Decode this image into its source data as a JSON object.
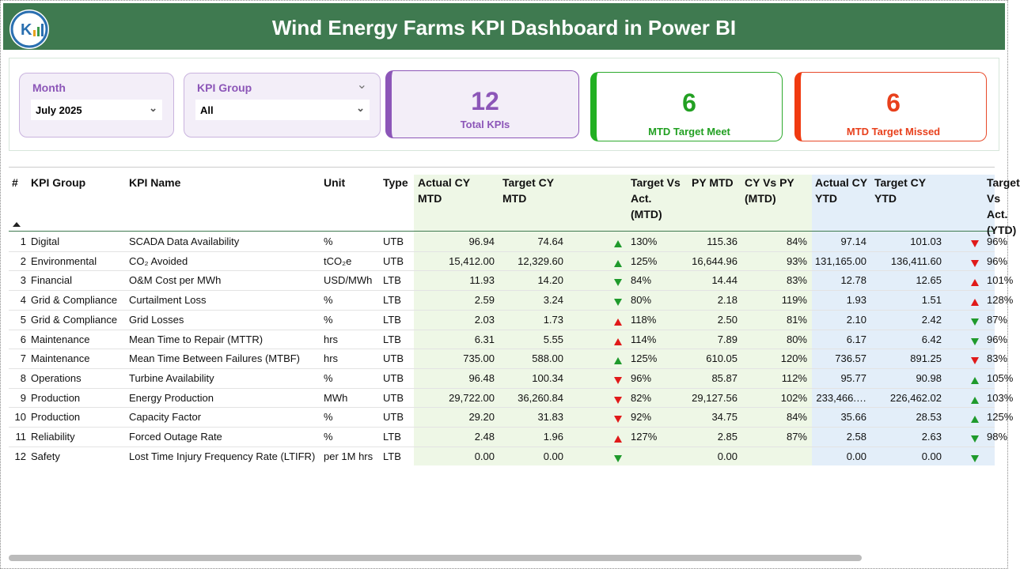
{
  "header": {
    "title": "Wind Energy Farms KPI Dashboard  in Power BI"
  },
  "slicers": [
    {
      "label": "Month",
      "selected": "July 2025"
    },
    {
      "label": "KPI Group",
      "selected": "All"
    }
  ],
  "cards": [
    {
      "value": "12",
      "label": "Total KPIs"
    },
    {
      "value": "6",
      "label": "MTD Target Meet"
    },
    {
      "value": "6",
      "label": "MTD Target Missed"
    }
  ],
  "table": {
    "columns": [
      "#",
      "KPI Group",
      "KPI Name",
      "Unit",
      "Type",
      "Actual CY MTD",
      "Target CY MTD",
      "Target Vs Act. (MTD)",
      "PY MTD",
      "CY Vs PY (MTD)",
      "Actual CY YTD",
      "Target CY YTD",
      "Target Vs Act. (YTD)"
    ],
    "rows": [
      [
        "1",
        "Digital",
        "SCADA Data Availability",
        "%",
        "UTB",
        "96.94",
        "74.64",
        "130%",
        "115.36",
        "84%",
        "97.14",
        "101.03",
        "96%"
      ],
      [
        "2",
        "Environmental",
        "CO₂ Avoided",
        "tCO₂e",
        "UTB",
        "15,412.00",
        "12,329.60",
        "125%",
        "16,644.96",
        "93%",
        "131,165.00",
        "136,411.60",
        "96%"
      ],
      [
        "3",
        "Financial",
        "O&M Cost per MWh",
        "USD/MWh",
        "LTB",
        "11.93",
        "14.20",
        "84%",
        "14.44",
        "83%",
        "12.78",
        "12.65",
        "101%"
      ],
      [
        "4",
        "Grid & Compliance",
        "Curtailment Loss",
        "%",
        "LTB",
        "2.59",
        "3.24",
        "80%",
        "2.18",
        "119%",
        "1.93",
        "1.51",
        "128%"
      ],
      [
        "5",
        "Grid & Compliance",
        "Grid Losses",
        "%",
        "LTB",
        "2.03",
        "1.73",
        "118%",
        "2.50",
        "81%",
        "2.10",
        "2.42",
        "87%"
      ],
      [
        "6",
        "Maintenance",
        "Mean Time to Repair (MTTR)",
        "hrs",
        "LTB",
        "6.31",
        "5.55",
        "114%",
        "7.89",
        "80%",
        "6.17",
        "6.42",
        "96%"
      ],
      [
        "7",
        "Maintenance",
        "Mean Time Between Failures (MTBF)",
        "hrs",
        "UTB",
        "735.00",
        "588.00",
        "125%",
        "610.05",
        "120%",
        "736.57",
        "891.25",
        "83%"
      ],
      [
        "8",
        "Operations",
        "Turbine Availability",
        "%",
        "UTB",
        "96.48",
        "100.34",
        "96%",
        "85.87",
        "112%",
        "95.77",
        "90.98",
        "105%"
      ],
      [
        "9",
        "Production",
        "Energy Production",
        "MWh",
        "UTB",
        "29,722.00",
        "36,260.84",
        "82%",
        "29,127.56",
        "102%",
        "233,466.…",
        "226,462.02",
        "103%"
      ],
      [
        "10",
        "Production",
        "Capacity Factor",
        "%",
        "UTB",
        "29.20",
        "31.83",
        "92%",
        "34.75",
        "84%",
        "35.66",
        "28.53",
        "125%"
      ],
      [
        "11",
        "Reliability",
        "Forced Outage Rate",
        "%",
        "LTB",
        "2.48",
        "1.96",
        "127%",
        "2.85",
        "87%",
        "2.58",
        "2.63",
        "98%"
      ],
      [
        "12",
        "Safety",
        "Lost Time Injury Frequency Rate (LTIFR)",
        "per 1M hrs",
        "LTB",
        "0.00",
        "0.00",
        "",
        "0.00",
        "",
        "0.00",
        "0.00",
        ""
      ]
    ]
  }
}
